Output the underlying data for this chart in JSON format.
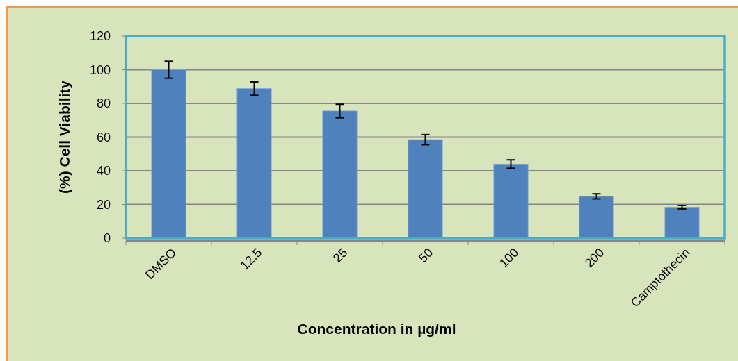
{
  "chart_data": {
    "type": "bar",
    "xlabel": "Concentration in µg/ml",
    "ylabel": "(%) Cell Viability",
    "categories": [
      "DMSO",
      "12.5",
      "25",
      "50",
      "100",
      "200",
      "Camptothecin"
    ],
    "values": [
      100,
      88.8,
      75.5,
      58.5,
      44,
      24.8,
      18.4
    ],
    "errors": [
      5,
      4,
      4,
      3,
      2.5,
      1.5,
      1
    ],
    "color": "#4f81bd",
    "ylim": [
      0,
      120
    ],
    "yticks": [
      0,
      20,
      40,
      60,
      80,
      100,
      120
    ],
    "grid": "y"
  }
}
